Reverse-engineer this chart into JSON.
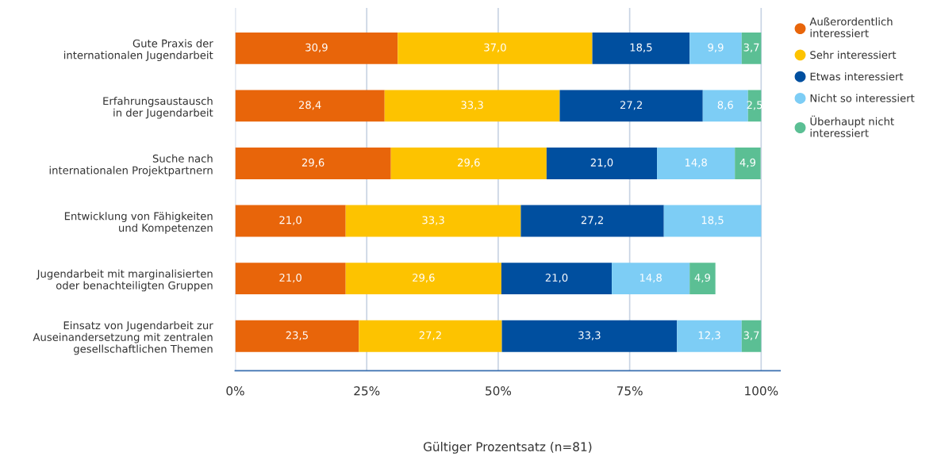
{
  "chart_data": {
    "type": "bar",
    "orientation": "horizontal",
    "stacked": true,
    "xlabel": "Gültiger Prozentsatz (n=81)",
    "categories": [
      "Gute Praxis der\ninternationalen Jugendarbeit",
      "Erfahrungsaustausch\nin der Jugendarbeit",
      "Suche nach\ninternationalen Projektpartnern",
      "Entwicklung von Fähigkeiten\nund Kompetenzen",
      "Jugendarbeit mit marginalisierten\noder benachteiligten Gruppen",
      "Einsatz von Jugendarbeit zur\nAuseinandersetzung mit zentralen\ngesellschaftlichen Themen"
    ],
    "series": [
      {
        "name": "Außerordentlich\ninteressiert",
        "color": "#e8650a",
        "values": [
          30.9,
          28.4,
          29.6,
          21.0,
          21.0,
          23.5
        ],
        "value_labels": [
          "30,9",
          "28,4",
          "29,6",
          "21,0",
          "21,0",
          "23,5"
        ]
      },
      {
        "name": "Sehr interessiert",
        "color": "#fdc300",
        "values": [
          37.0,
          33.3,
          29.6,
          33.3,
          29.6,
          27.2
        ],
        "value_labels": [
          "37,0",
          "33,3",
          "29,6",
          "33,3",
          "29,6",
          "27,2"
        ]
      },
      {
        "name": "Etwas interessiert",
        "color": "#004f9f",
        "values": [
          18.5,
          27.2,
          21.0,
          27.2,
          21.0,
          33.3
        ],
        "value_labels": [
          "18,5",
          "27,2",
          "21,0",
          "27,2",
          "21,0",
          "33,3"
        ]
      },
      {
        "name": "Nicht so interessiert",
        "color": "#7dcdf5",
        "values": [
          9.9,
          8.6,
          14.8,
          18.5,
          14.8,
          12.3
        ],
        "value_labels": [
          "9,9",
          "8,6",
          "14,8",
          "18,5",
          "14,8",
          "12,3"
        ]
      },
      {
        "name": "Überhaupt nicht\ninteressiert",
        "color": "#5bbf94",
        "values": [
          3.7,
          2.5,
          4.9,
          null,
          4.9,
          3.7
        ],
        "value_labels": [
          "3,7",
          "2,5",
          "4,9",
          null,
          "4,9",
          "3,7"
        ]
      }
    ],
    "xlim": [
      0,
      103.6
    ],
    "xticks": [
      {
        "value": 0,
        "label": "0%"
      },
      {
        "value": 25,
        "label": "25%"
      },
      {
        "value": 50,
        "label": "50%"
      },
      {
        "value": 75,
        "label": "75%"
      },
      {
        "value": 100,
        "label": "100%"
      }
    ],
    "grid": "x",
    "legend": "top right"
  }
}
